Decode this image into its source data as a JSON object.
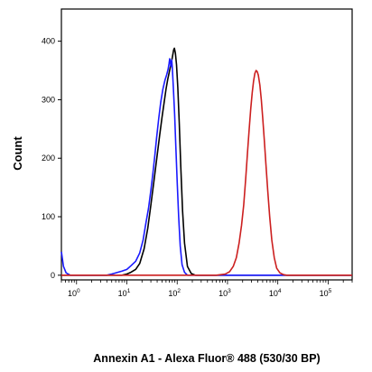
{
  "chart_data": {
    "type": "line",
    "title": "",
    "xlabel": "Annexin A1 - Alexa Fluor® 488 (530/30 BP)",
    "ylabel": "Count",
    "x_scale": "log",
    "xlim": [
      0.5,
      300000
    ],
    "ylim": [
      -8,
      455
    ],
    "y_ticks": [
      0,
      100,
      200,
      300,
      400
    ],
    "y_tick_labels": [
      "0",
      "100",
      "200",
      "300",
      "400"
    ],
    "x_ticks": [
      1,
      10,
      100,
      1000,
      10000,
      100000
    ],
    "x_tick_labels": [
      {
        "base": "10",
        "exp": "0"
      },
      {
        "base": "10",
        "exp": "1"
      },
      {
        "base": "10",
        "exp": "2"
      },
      {
        "base": "10",
        "exp": "3"
      },
      {
        "base": "10",
        "exp": "4"
      },
      {
        "base": "10",
        "exp": "5"
      }
    ],
    "grid": false,
    "legend": "none",
    "series": [
      {
        "color": "#000000",
        "points": [
          [
            0.5,
            0
          ],
          [
            8,
            0
          ],
          [
            10,
            2
          ],
          [
            12,
            5
          ],
          [
            15,
            10
          ],
          [
            18,
            20
          ],
          [
            22,
            45
          ],
          [
            26,
            80
          ],
          [
            30,
            120
          ],
          [
            35,
            165
          ],
          [
            40,
            205
          ],
          [
            45,
            240
          ],
          [
            50,
            270
          ],
          [
            55,
            295
          ],
          [
            60,
            318
          ],
          [
            65,
            335
          ],
          [
            70,
            348
          ],
          [
            75,
            360
          ],
          [
            80,
            372
          ],
          [
            85,
            385
          ],
          [
            88,
            388
          ],
          [
            92,
            380
          ],
          [
            97,
            360
          ],
          [
            103,
            320
          ],
          [
            110,
            260
          ],
          [
            118,
            185
          ],
          [
            128,
            110
          ],
          [
            140,
            55
          ],
          [
            160,
            15
          ],
          [
            190,
            3
          ],
          [
            230,
            0
          ],
          [
            300000,
            0
          ]
        ]
      },
      {
        "color": "#1a1aff",
        "points": [
          [
            0.5,
            40
          ],
          [
            0.55,
            15
          ],
          [
            0.62,
            4
          ],
          [
            0.75,
            0
          ],
          [
            4,
            0
          ],
          [
            5,
            2
          ],
          [
            6,
            4
          ],
          [
            8,
            7
          ],
          [
            10,
            10
          ],
          [
            12,
            16
          ],
          [
            15,
            24
          ],
          [
            18,
            38
          ],
          [
            21,
            60
          ],
          [
            24,
            90
          ],
          [
            27,
            115
          ],
          [
            30,
            145
          ],
          [
            33,
            175
          ],
          [
            36,
            205
          ],
          [
            39,
            235
          ],
          [
            43,
            268
          ],
          [
            47,
            295
          ],
          [
            52,
            318
          ],
          [
            57,
            333
          ],
          [
            62,
            343
          ],
          [
            66,
            352
          ],
          [
            69,
            362
          ],
          [
            71,
            370
          ],
          [
            73,
            365
          ],
          [
            75,
            357
          ],
          [
            78,
            368
          ],
          [
            80,
            355
          ],
          [
            84,
            320
          ],
          [
            89,
            275
          ],
          [
            94,
            220
          ],
          [
            100,
            160
          ],
          [
            107,
            100
          ],
          [
            115,
            50
          ],
          [
            125,
            18
          ],
          [
            140,
            5
          ],
          [
            160,
            0
          ],
          [
            300000,
            0
          ]
        ]
      },
      {
        "color": "#cc1f1f",
        "points": [
          [
            0.5,
            0
          ],
          [
            600,
            0
          ],
          [
            900,
            2
          ],
          [
            1100,
            6
          ],
          [
            1300,
            15
          ],
          [
            1500,
            30
          ],
          [
            1700,
            55
          ],
          [
            1900,
            85
          ],
          [
            2100,
            120
          ],
          [
            2300,
            165
          ],
          [
            2500,
            210
          ],
          [
            2700,
            250
          ],
          [
            2900,
            285
          ],
          [
            3100,
            312
          ],
          [
            3300,
            332
          ],
          [
            3500,
            345
          ],
          [
            3700,
            350
          ],
          [
            3900,
            348
          ],
          [
            4100,
            342
          ],
          [
            4400,
            325
          ],
          [
            4700,
            300
          ],
          [
            5000,
            270
          ],
          [
            5400,
            230
          ],
          [
            5800,
            190
          ],
          [
            6300,
            145
          ],
          [
            6900,
            100
          ],
          [
            7600,
            60
          ],
          [
            8500,
            30
          ],
          [
            9500,
            12
          ],
          [
            11000,
            4
          ],
          [
            13000,
            1
          ],
          [
            15000,
            0
          ],
          [
            300000,
            0
          ]
        ]
      }
    ]
  }
}
